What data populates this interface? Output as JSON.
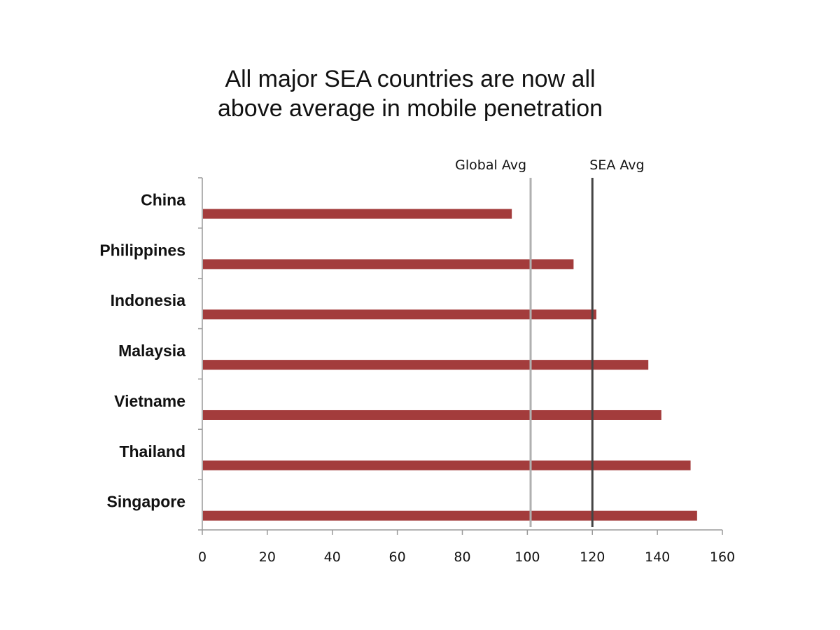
{
  "chart_data": {
    "type": "bar",
    "orientation": "horizontal",
    "title_lines": [
      "All major SEA countries are now all",
      "above average in mobile penetration"
    ],
    "categories": [
      "China",
      "Philippines",
      "Indonesia",
      "Malaysia",
      "Vietname",
      "Thailand",
      "Singapore"
    ],
    "values": [
      95,
      114,
      121,
      137,
      141,
      150,
      152
    ],
    "bar_color": "#a33c3c",
    "xlim": [
      0,
      160
    ],
    "x_ticks": [
      0,
      20,
      40,
      60,
      80,
      100,
      120,
      140,
      160
    ],
    "grid": false,
    "reference_lines": [
      {
        "label": "Global Avg",
        "value": 101,
        "color": "#b0b0b0"
      },
      {
        "label": "SEA Avg",
        "value": 120,
        "color": "#444444"
      }
    ]
  }
}
